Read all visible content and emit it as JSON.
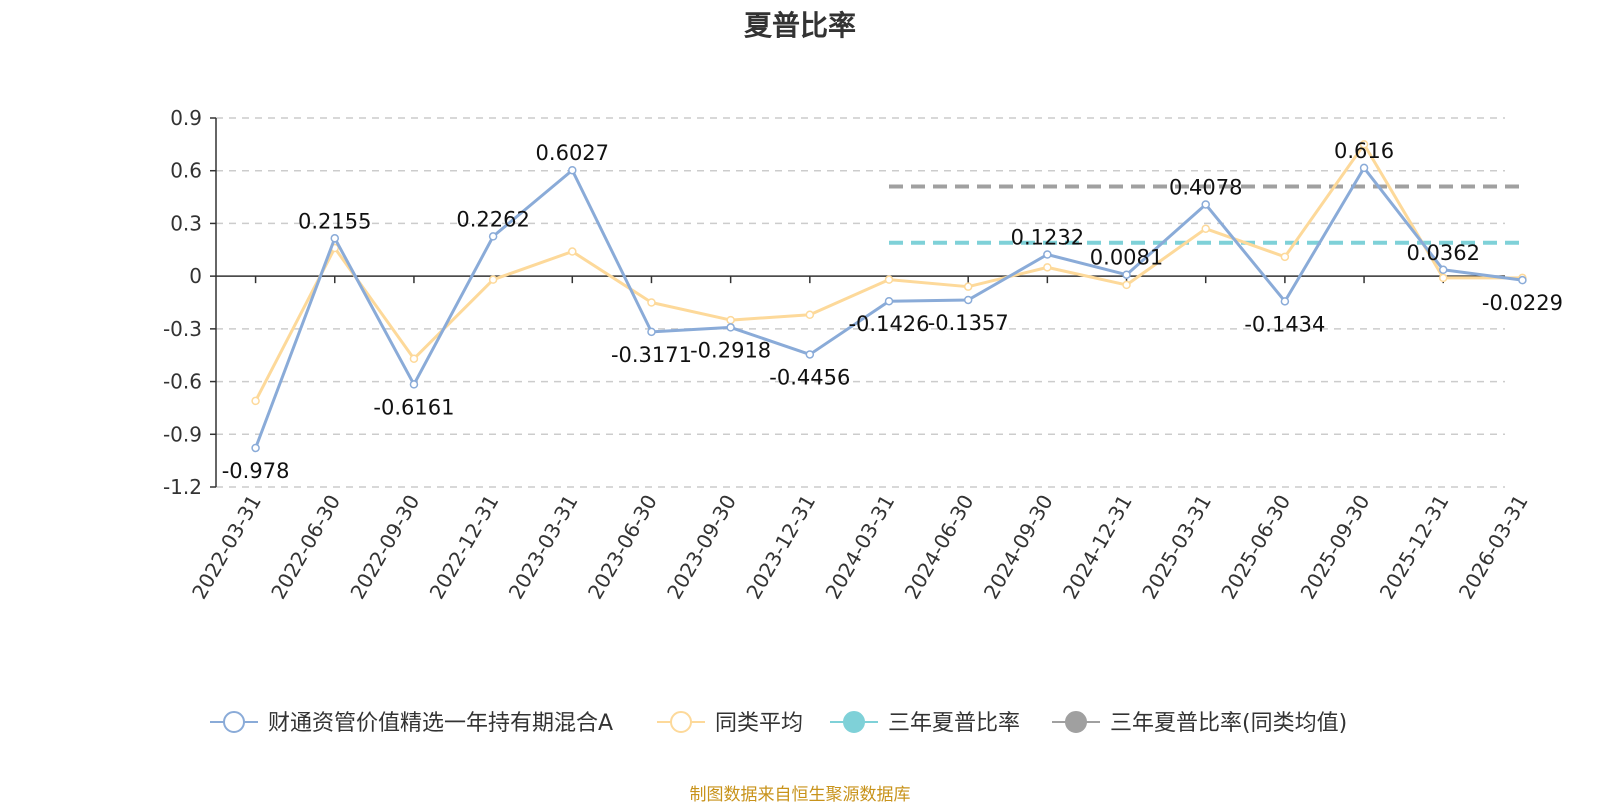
{
  "chart_data": {
    "type": "line",
    "title": "夏普比率",
    "categories": [
      "2022-03-31",
      "2022-06-30",
      "2022-09-30",
      "2022-12-31",
      "2023-03-31",
      "2023-06-30",
      "2023-09-30",
      "2023-12-31",
      "2024-03-31",
      "2024-06-30",
      "2024-09-30",
      "2024-12-31",
      "2025-03-31",
      "2025-06-30",
      "2025-09-30",
      "2025-12-31",
      "2026-03-31"
    ],
    "ylim": [
      -1.2,
      0.9
    ],
    "yticks": [
      "0.9",
      "0.6",
      "0.3",
      "0",
      "-0.3",
      "-0.6",
      "-0.9",
      "-1.2"
    ],
    "grid": true,
    "legend_position": "bottom",
    "series": [
      {
        "name": "财通资管价值精选一年持有期混合A",
        "color": "#8aabd8",
        "values": [
          -0.978,
          0.2155,
          -0.6161,
          0.2262,
          0.6027,
          -0.3171,
          -0.2918,
          -0.4456,
          -0.1426,
          -0.1357,
          0.1232,
          0.0081,
          0.4078,
          -0.1434,
          0.616,
          0.0362,
          -0.0229
        ],
        "labels": [
          "-0.978",
          "0.2155",
          "-0.6161",
          "0.2262",
          "0.6027",
          "-0.3171",
          "-0.2918",
          "-0.4456",
          "-0.1426",
          "-0.1357",
          "0.1232",
          "0.0081",
          "0.4078",
          "-0.1434",
          "0.616",
          "0.0362",
          "-0.0229"
        ]
      },
      {
        "name": "同类平均",
        "color": "#fdd99a",
        "values": [
          -0.71,
          0.16,
          -0.47,
          -0.02,
          0.14,
          -0.15,
          -0.25,
          -0.22,
          -0.02,
          -0.06,
          0.05,
          -0.05,
          0.27,
          0.11,
          0.75,
          -0.01,
          -0.01
        ]
      },
      {
        "name": "三年夏普比率",
        "color": "#7fd1d8",
        "reference_line": 0.19,
        "x_range": [
          "2024-03-31",
          "2026-03-31"
        ]
      },
      {
        "name": "三年夏普比率(同类均值)",
        "color": "#a0a0a0",
        "reference_line": 0.51,
        "x_range": [
          "2024-03-31",
          "2026-03-31"
        ]
      }
    ]
  },
  "source_note": "制图数据来自恒生聚源数据库"
}
